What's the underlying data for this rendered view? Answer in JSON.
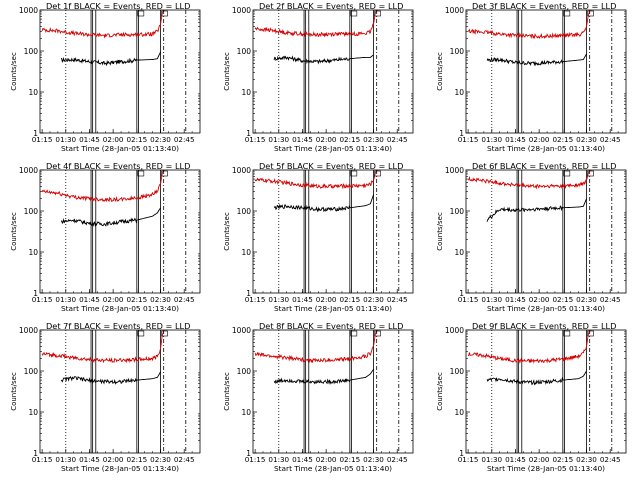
{
  "figure": {
    "ylabel": "Counts/sec",
    "xlabel": "Start Time (28-Jan-05 01:13:40)",
    "x_ticks": [
      "01:15",
      "01:30",
      "01:45",
      "02:00",
      "02:15",
      "02:30",
      "02:45"
    ],
    "y_ticks": [
      "1",
      "10",
      "100",
      "1000"
    ],
    "title_suffix": "BLACK = Events, RED = LLD"
  },
  "chart_data": [
    {
      "type": "line",
      "title": "Det 1f BLACK = Events, RED = LLD",
      "xlabel": "Start Time (28-Jan-05 01:13:40)",
      "ylabel": "Counts/sec",
      "y_scale": "log",
      "ylim": [
        1,
        1000
      ],
      "x_range": [
        "01:13:40",
        "02:55"
      ],
      "series": [
        {
          "name": "Events",
          "color": "#000000",
          "x": [
            "01:27",
            "01:35",
            "01:45",
            "01:55",
            "02:05",
            "02:15",
            "02:25",
            "02:28",
            "02:30"
          ],
          "values": [
            60,
            62,
            55,
            50,
            55,
            60,
            62,
            65,
            95
          ]
        },
        {
          "name": "LLD",
          "color": "#d40000",
          "x": [
            "01:15",
            "01:25",
            "01:35",
            "01:45",
            "01:55",
            "02:05",
            "02:15",
            "02:25",
            "02:28",
            "02:30",
            "02:31",
            "02:32",
            "02:33"
          ],
          "values": [
            330,
            310,
            270,
            250,
            240,
            250,
            250,
            260,
            300,
            450,
            800,
            1000,
            1000
          ]
        }
      ],
      "markers": {
        "dotted": [
          "01:30"
        ],
        "solid": [
          "01:46",
          "01:47",
          "01:49",
          "02:15",
          "02:16",
          "02:30"
        ],
        "dashdot": [
          "02:32",
          "02:46"
        ]
      }
    },
    {
      "type": "line",
      "title": "Det 2f BLACK = Events, RED = LLD",
      "xlabel": "Start Time (28-Jan-05 01:13:40)",
      "ylabel": "Counts/sec",
      "y_scale": "log",
      "ylim": [
        1,
        1000
      ],
      "x_range": [
        "01:13:40",
        "02:55"
      ],
      "series": [
        {
          "name": "Events",
          "color": "#000000",
          "x": [
            "01:27",
            "01:35",
            "01:45",
            "01:55",
            "02:05",
            "02:15",
            "02:25",
            "02:28",
            "02:30"
          ],
          "values": [
            65,
            70,
            58,
            55,
            60,
            65,
            70,
            70,
            80
          ]
        },
        {
          "name": "LLD",
          "color": "#d40000",
          "x": [
            "01:15",
            "01:25",
            "01:35",
            "01:45",
            "01:55",
            "02:05",
            "02:15",
            "02:25",
            "02:28",
            "02:30",
            "02:31",
            "02:32",
            "02:33"
          ],
          "values": [
            350,
            320,
            280,
            260,
            250,
            260,
            260,
            270,
            290,
            450,
            800,
            1000,
            1000
          ]
        }
      ],
      "markers": {
        "dotted": [
          "01:30"
        ],
        "solid": [
          "01:46",
          "01:47",
          "01:49",
          "02:15",
          "02:16",
          "02:30"
        ],
        "dashdot": [
          "02:32",
          "02:46"
        ]
      }
    },
    {
      "type": "line",
      "title": "Det 3f BLACK = Events, RED = LLD",
      "xlabel": "Start Time (28-Jan-05 01:13:40)",
      "ylabel": "Counts/sec",
      "y_scale": "log",
      "ylim": [
        1,
        1000
      ],
      "x_range": [
        "01:13:40",
        "02:55"
      ],
      "series": [
        {
          "name": "Events",
          "color": "#000000",
          "x": [
            "01:27",
            "01:35",
            "01:45",
            "01:55",
            "02:05",
            "02:15",
            "02:25",
            "02:28",
            "02:30"
          ],
          "values": [
            60,
            62,
            52,
            50,
            52,
            55,
            60,
            62,
            85
          ]
        },
        {
          "name": "LLD",
          "color": "#d40000",
          "x": [
            "01:15",
            "01:25",
            "01:35",
            "01:45",
            "01:55",
            "02:05",
            "02:15",
            "02:25",
            "02:28",
            "02:30",
            "02:31",
            "02:32",
            "02:33"
          ],
          "values": [
            300,
            290,
            260,
            240,
            230,
            230,
            240,
            250,
            270,
            400,
            700,
            1000,
            1000
          ]
        }
      ],
      "markers": {
        "dotted": [
          "01:30"
        ],
        "solid": [
          "01:46",
          "01:47",
          "01:49",
          "02:15",
          "02:16",
          "02:30"
        ],
        "dashdot": [
          "02:32",
          "02:46"
        ]
      }
    },
    {
      "type": "line",
      "title": "Det 4f BLACK = Events, RED = LLD",
      "xlabel": "Start Time (28-Jan-05 01:13:40)",
      "ylabel": "Counts/sec",
      "y_scale": "log",
      "ylim": [
        1,
        1000
      ],
      "x_range": [
        "01:13:40",
        "02:55"
      ],
      "series": [
        {
          "name": "Events",
          "color": "#000000",
          "x": [
            "01:27",
            "01:35",
            "01:45",
            "01:55",
            "02:05",
            "02:15",
            "02:25",
            "02:28",
            "02:30"
          ],
          "values": [
            55,
            60,
            50,
            48,
            55,
            60,
            75,
            90,
            120
          ]
        },
        {
          "name": "LLD",
          "color": "#d40000",
          "x": [
            "01:15",
            "01:25",
            "01:35",
            "01:45",
            "01:55",
            "02:05",
            "02:15",
            "02:25",
            "02:28",
            "02:30",
            "02:31",
            "02:32",
            "02:33"
          ],
          "values": [
            300,
            270,
            220,
            200,
            190,
            190,
            210,
            250,
            300,
            450,
            800,
            1000,
            1000
          ]
        }
      ],
      "markers": {
        "dotted": [
          "01:30"
        ],
        "solid": [
          "01:46",
          "01:47",
          "01:49",
          "02:15",
          "02:16",
          "02:30"
        ],
        "dashdot": [
          "02:32",
          "02:46"
        ]
      }
    },
    {
      "type": "line",
      "title": "Det 5f BLACK = Events, RED = LLD",
      "xlabel": "Start Time (28-Jan-05 01:13:40)",
      "ylabel": "Counts/sec",
      "y_scale": "log",
      "ylim": [
        1,
        1000
      ],
      "x_range": [
        "01:13:40",
        "02:55"
      ],
      "series": [
        {
          "name": "Events",
          "color": "#000000",
          "x": [
            "01:27",
            "01:35",
            "01:45",
            "01:55",
            "02:05",
            "02:15",
            "02:25",
            "02:28",
            "02:30"
          ],
          "values": [
            120,
            130,
            120,
            110,
            110,
            120,
            135,
            150,
            250
          ]
        },
        {
          "name": "LLD",
          "color": "#d40000",
          "x": [
            "01:15",
            "01:25",
            "01:35",
            "01:45",
            "01:55",
            "02:05",
            "02:15",
            "02:25",
            "02:28",
            "02:30",
            "02:31",
            "02:32",
            "02:33"
          ],
          "values": [
            580,
            540,
            480,
            430,
            400,
            400,
            410,
            420,
            450,
            550,
            800,
            1000,
            1000
          ]
        }
      ],
      "markers": {
        "dotted": [
          "01:30"
        ],
        "solid": [
          "01:46",
          "01:47",
          "01:49",
          "02:15",
          "02:16",
          "02:30"
        ],
        "dashdot": [
          "02:32",
          "02:46"
        ]
      }
    },
    {
      "type": "line",
      "title": "Det 6f BLACK = Events, RED = LLD",
      "xlabel": "Start Time (28-Jan-05 01:13:40)",
      "ylabel": "Counts/sec",
      "y_scale": "log",
      "ylim": [
        1,
        1000
      ],
      "x_range": [
        "01:13:40",
        "02:55"
      ],
      "series": [
        {
          "name": "Events",
          "color": "#000000",
          "x": [
            "01:27",
            "01:35",
            "01:45",
            "01:55",
            "02:05",
            "02:15",
            "02:25",
            "02:28",
            "02:30"
          ],
          "values": [
            60,
            110,
            105,
            110,
            115,
            120,
            125,
            130,
            200
          ]
        },
        {
          "name": "LLD",
          "color": "#d40000",
          "x": [
            "01:15",
            "01:25",
            "01:35",
            "01:45",
            "01:55",
            "02:05",
            "02:15",
            "02:25",
            "02:28",
            "02:30",
            "02:31",
            "02:32",
            "02:33"
          ],
          "values": [
            600,
            550,
            480,
            430,
            400,
            400,
            410,
            430,
            460,
            560,
            800,
            1000,
            1000
          ]
        }
      ],
      "markers": {
        "dotted": [
          "01:30"
        ],
        "solid": [
          "01:46",
          "01:47",
          "01:49",
          "02:15",
          "02:16",
          "02:30"
        ],
        "dashdot": [
          "02:32",
          "02:46"
        ]
      }
    },
    {
      "type": "line",
      "title": "Det 7f BLACK = Events, RED = LLD",
      "xlabel": "Start Time (28-Jan-05 01:13:40)",
      "ylabel": "Counts/sec",
      "y_scale": "log",
      "ylim": [
        1,
        1000
      ],
      "x_range": [
        "01:13:40",
        "02:55"
      ],
      "series": [
        {
          "name": "Events",
          "color": "#000000",
          "x": [
            "01:27",
            "01:35",
            "01:45",
            "01:55",
            "02:05",
            "02:15",
            "02:25",
            "02:28",
            "02:30"
          ],
          "values": [
            60,
            68,
            58,
            55,
            55,
            60,
            65,
            70,
            95
          ]
        },
        {
          "name": "LLD",
          "color": "#d40000",
          "x": [
            "01:15",
            "01:25",
            "01:35",
            "01:45",
            "01:55",
            "02:05",
            "02:15",
            "02:25",
            "02:28",
            "02:30",
            "02:31",
            "02:32",
            "02:33"
          ],
          "values": [
            260,
            240,
            210,
            190,
            180,
            185,
            190,
            200,
            230,
            350,
            700,
            1000,
            1000
          ]
        }
      ],
      "markers": {
        "dotted": [
          "01:30"
        ],
        "solid": [
          "01:46",
          "01:47",
          "01:49",
          "02:15",
          "02:16",
          "02:30"
        ],
        "dashdot": [
          "02:32",
          "02:46"
        ]
      }
    },
    {
      "type": "line",
      "title": "Det 8f BLACK = Events, RED = LLD",
      "xlabel": "Start Time (28-Jan-05 01:13:40)",
      "ylabel": "Counts/sec",
      "y_scale": "log",
      "ylim": [
        1,
        1000
      ],
      "x_range": [
        "01:13:40",
        "02:55"
      ],
      "series": [
        {
          "name": "Events",
          "color": "#000000",
          "x": [
            "01:27",
            "01:35",
            "01:45",
            "01:55",
            "02:05",
            "02:15",
            "02:25",
            "02:28",
            "02:30"
          ],
          "values": [
            55,
            60,
            55,
            55,
            55,
            60,
            70,
            85,
            110
          ]
        },
        {
          "name": "LLD",
          "color": "#d40000",
          "x": [
            "01:15",
            "01:25",
            "01:35",
            "01:45",
            "01:55",
            "02:05",
            "02:15",
            "02:25",
            "02:28",
            "02:30",
            "02:31",
            "02:32",
            "02:33"
          ],
          "values": [
            260,
            230,
            210,
            190,
            180,
            185,
            200,
            230,
            270,
            400,
            750,
            1000,
            1000
          ]
        }
      ],
      "markers": {
        "dotted": [
          "01:30"
        ],
        "solid": [
          "01:46",
          "01:47",
          "01:49",
          "02:15",
          "02:16",
          "02:30"
        ],
        "dashdot": [
          "02:32",
          "02:46"
        ]
      }
    },
    {
      "type": "line",
      "title": "Det 9f BLACK = Events, RED = LLD",
      "xlabel": "Start Time (28-Jan-05 01:13:40)",
      "ylabel": "Counts/sec",
      "y_scale": "log",
      "ylim": [
        1,
        1000
      ],
      "x_range": [
        "01:13:40",
        "02:55"
      ],
      "series": [
        {
          "name": "Events",
          "color": "#000000",
          "x": [
            "01:27",
            "01:35",
            "01:45",
            "01:55",
            "02:05",
            "02:15",
            "02:25",
            "02:28",
            "02:30"
          ],
          "values": [
            60,
            65,
            55,
            52,
            55,
            60,
            65,
            75,
            100
          ]
        },
        {
          "name": "LLD",
          "color": "#d40000",
          "x": [
            "01:15",
            "01:25",
            "01:35",
            "01:45",
            "01:55",
            "02:05",
            "02:15",
            "02:25",
            "02:28",
            "02:30",
            "02:31",
            "02:32",
            "02:33"
          ],
          "values": [
            260,
            240,
            200,
            180,
            175,
            180,
            195,
            230,
            270,
            400,
            750,
            1000,
            1000
          ]
        }
      ],
      "markers": {
        "dotted": [
          "01:30"
        ],
        "solid": [
          "01:46",
          "01:47",
          "01:49",
          "02:15",
          "02:16",
          "02:30"
        ],
        "dashdot": [
          "02:32",
          "02:46"
        ]
      }
    }
  ]
}
